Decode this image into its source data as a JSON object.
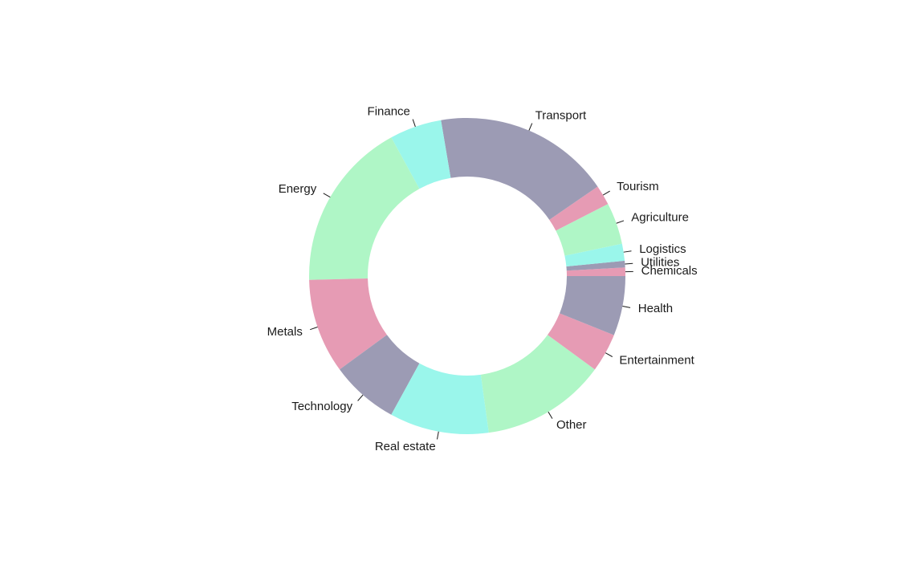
{
  "chart_data": {
    "type": "pie",
    "donut": true,
    "categories": [
      "Chemicals",
      "Utilities",
      "Logistics",
      "Agriculture",
      "Tourism",
      "Transport",
      "Finance",
      "Energy",
      "Metals",
      "Technology",
      "Real estate",
      "Other",
      "Entertainment",
      "Health"
    ],
    "values": [
      0.9,
      0.7,
      1.8,
      4.4,
      2.1,
      18.7,
      5.5,
      18.0,
      10.0,
      7.2,
      10.5,
      13.2,
      4.1,
      6.3
    ],
    "unit": "percent",
    "direction": "counterclockwise",
    "start": "3 o'clock",
    "colors": [
      "#E69BB4",
      "#9C9BB4",
      "#9AF6EB",
      "#AFF6C6",
      "#E69BB4",
      "#9C9BB4",
      "#9AF6EB",
      "#AFF6C6",
      "#E69BB4",
      "#9C9BB4",
      "#9AF6EB",
      "#AFF6C6",
      "#E69BB4",
      "#9C9BB4"
    ],
    "title": "",
    "legend": "none",
    "labels_on_slices": "outside with leader ticks"
  }
}
